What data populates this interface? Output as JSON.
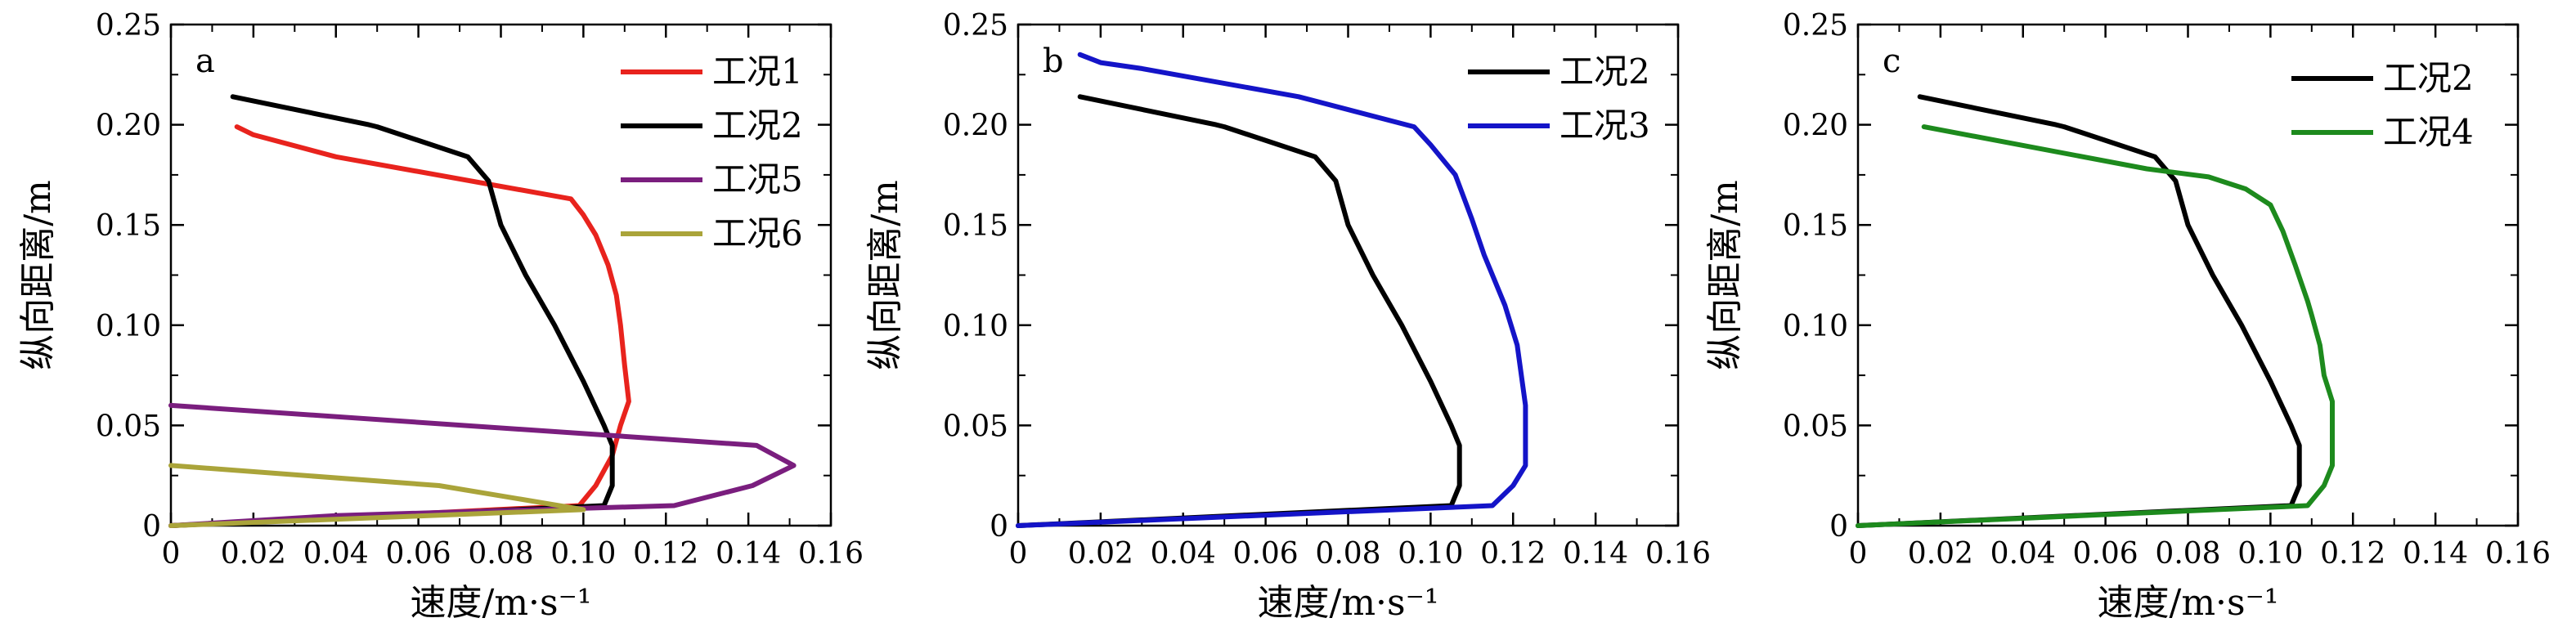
{
  "chart_data": [
    {
      "type": "line",
      "panel_label": "a",
      "xlabel": "速度/m·s⁻¹",
      "ylabel": "纵向距离/m",
      "xlim": [
        0,
        0.16
      ],
      "ylim": [
        0,
        0.25
      ],
      "xticks": [
        0,
        0.02,
        0.04,
        0.06,
        0.08,
        0.1,
        0.12,
        0.14,
        0.16
      ],
      "xtick_labels": [
        "0",
        "0.02",
        "0.04",
        "0.06",
        "0.08",
        "0.10",
        "0.12",
        "0.14",
        "0.16"
      ],
      "yticks": [
        0,
        0.05,
        0.1,
        0.15,
        0.2,
        0.25
      ],
      "ytick_labels": [
        "0",
        "0.05",
        "0.10",
        "0.15",
        "0.20",
        "0.25"
      ],
      "grid": false,
      "legend_position": "top-right",
      "series": [
        {
          "name": "工况1",
          "color": "#e8231d",
          "points": [
            [
              0,
              0
            ],
            [
              0.099,
              0.01
            ],
            [
              0.103,
              0.02
            ],
            [
              0.107,
              0.035
            ],
            [
              0.109,
              0.05
            ],
            [
              0.111,
              0.062
            ],
            [
              0.11,
              0.08
            ],
            [
              0.109,
              0.1
            ],
            [
              0.108,
              0.115
            ],
            [
              0.106,
              0.13
            ],
            [
              0.103,
              0.145
            ],
            [
              0.1,
              0.155
            ],
            [
              0.097,
              0.163
            ],
            [
              0.04,
              0.184
            ],
            [
              0.02,
              0.195
            ],
            [
              0.016,
              0.199
            ]
          ]
        },
        {
          "name": "工况2",
          "color": "#000000",
          "points": [
            [
              0,
              0
            ],
            [
              0.105,
              0.01
            ],
            [
              0.107,
              0.02
            ],
            [
              0.107,
              0.04
            ],
            [
              0.105,
              0.05
            ],
            [
              0.1,
              0.072
            ],
            [
              0.093,
              0.1
            ],
            [
              0.086,
              0.125
            ],
            [
              0.08,
              0.15
            ],
            [
              0.077,
              0.172
            ],
            [
              0.072,
              0.184
            ],
            [
              0.05,
              0.199
            ],
            [
              0.048,
              0.2
            ],
            [
              0.015,
              0.214
            ]
          ]
        },
        {
          "name": "工况5",
          "color": "#7a1e7e",
          "points": [
            [
              0,
              0.06
            ],
            [
              0.142,
              0.04
            ],
            [
              0.151,
              0.03
            ],
            [
              0.141,
              0.02
            ],
            [
              0.122,
              0.01
            ],
            [
              0.04,
              0.005
            ],
            [
              0,
              0
            ]
          ]
        },
        {
          "name": "工况6",
          "color": "#aaa43a",
          "points": [
            [
              0,
              0.03
            ],
            [
              0.065,
              0.02
            ],
            [
              0.1,
              0.008
            ],
            [
              0,
              0
            ]
          ]
        }
      ]
    },
    {
      "type": "line",
      "panel_label": "b",
      "xlabel": "速度/m·s⁻¹",
      "ylabel": "纵向距离/m",
      "xlim": [
        0,
        0.16
      ],
      "ylim": [
        0,
        0.25
      ],
      "xticks": [
        0,
        0.02,
        0.04,
        0.06,
        0.08,
        0.1,
        0.12,
        0.14,
        0.16
      ],
      "xtick_labels": [
        "0",
        "0.02",
        "0.04",
        "0.06",
        "0.08",
        "0.10",
        "0.12",
        "0.14",
        "0.16"
      ],
      "yticks": [
        0,
        0.05,
        0.1,
        0.15,
        0.2,
        0.25
      ],
      "ytick_labels": [
        "0",
        "0.05",
        "0.10",
        "0.15",
        "0.20",
        "0.25"
      ],
      "grid": false,
      "legend_position": "top-right",
      "series": [
        {
          "name": "工况2",
          "color": "#000000",
          "points": [
            [
              0,
              0
            ],
            [
              0.105,
              0.01
            ],
            [
              0.107,
              0.02
            ],
            [
              0.107,
              0.04
            ],
            [
              0.105,
              0.05
            ],
            [
              0.1,
              0.072
            ],
            [
              0.093,
              0.1
            ],
            [
              0.086,
              0.125
            ],
            [
              0.08,
              0.15
            ],
            [
              0.077,
              0.172
            ],
            [
              0.072,
              0.184
            ],
            [
              0.05,
              0.199
            ],
            [
              0.048,
              0.2
            ],
            [
              0.015,
              0.214
            ]
          ]
        },
        {
          "name": "工况3",
          "color": "#1414c8",
          "points": [
            [
              0,
              0
            ],
            [
              0.115,
              0.01
            ],
            [
              0.12,
              0.02
            ],
            [
              0.123,
              0.03
            ],
            [
              0.123,
              0.06
            ],
            [
              0.121,
              0.09
            ],
            [
              0.118,
              0.11
            ],
            [
              0.113,
              0.135
            ],
            [
              0.11,
              0.153
            ],
            [
              0.106,
              0.175
            ],
            [
              0.1,
              0.19
            ],
            [
              0.096,
              0.199
            ],
            [
              0.068,
              0.214
            ],
            [
              0.03,
              0.228
            ],
            [
              0.02,
              0.231
            ],
            [
              0.015,
              0.235
            ]
          ]
        }
      ]
    },
    {
      "type": "line",
      "panel_label": "c",
      "xlabel": "速度/m·s⁻¹",
      "ylabel": "纵向距离/m",
      "xlim": [
        0,
        0.16
      ],
      "ylim": [
        0,
        0.25
      ],
      "xticks": [
        0,
        0.02,
        0.04,
        0.06,
        0.08,
        0.1,
        0.12,
        0.14,
        0.16
      ],
      "xtick_labels": [
        "0",
        "0.02",
        "0.04",
        "0.06",
        "0.08",
        "0.10",
        "0.12",
        "0.14",
        "0.16"
      ],
      "yticks": [
        0,
        0.05,
        0.1,
        0.15,
        0.2,
        0.25
      ],
      "ytick_labels": [
        "0",
        "0.05",
        "0.10",
        "0.15",
        "0.20",
        "0.25"
      ],
      "grid": false,
      "legend_position": "top-right",
      "series": [
        {
          "name": "工况2",
          "color": "#000000",
          "points": [
            [
              0,
              0
            ],
            [
              0.105,
              0.01
            ],
            [
              0.107,
              0.02
            ],
            [
              0.107,
              0.04
            ],
            [
              0.105,
              0.05
            ],
            [
              0.1,
              0.072
            ],
            [
              0.093,
              0.1
            ],
            [
              0.086,
              0.125
            ],
            [
              0.08,
              0.15
            ],
            [
              0.077,
              0.172
            ],
            [
              0.072,
              0.184
            ],
            [
              0.05,
              0.199
            ],
            [
              0.048,
              0.2
            ],
            [
              0.015,
              0.214
            ]
          ]
        },
        {
          "name": "工况4",
          "color": "#1d8a1d",
          "points": [
            [
              0,
              0
            ],
            [
              0.109,
              0.01
            ],
            [
              0.113,
              0.02
            ],
            [
              0.115,
              0.03
            ],
            [
              0.115,
              0.062
            ],
            [
              0.113,
              0.075
            ],
            [
              0.112,
              0.09
            ],
            [
              0.11,
              0.105
            ],
            [
              0.109,
              0.112
            ],
            [
              0.106,
              0.13
            ],
            [
              0.103,
              0.147
            ],
            [
              0.1,
              0.16
            ],
            [
              0.094,
              0.168
            ],
            [
              0.085,
              0.174
            ],
            [
              0.07,
              0.178
            ],
            [
              0.016,
              0.199
            ]
          ]
        }
      ]
    }
  ]
}
